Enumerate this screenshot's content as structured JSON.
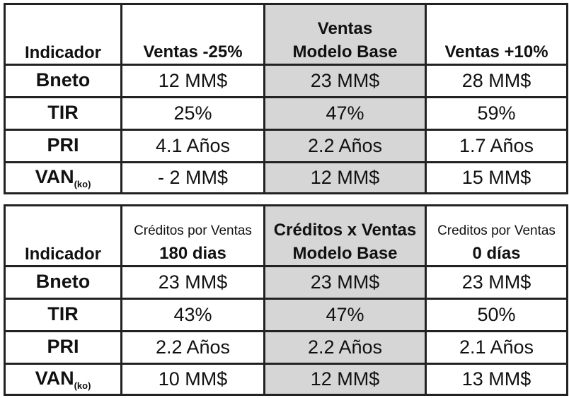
{
  "table1": {
    "header": {
      "indicator": "Indicador",
      "col1": "Ventas -25%",
      "col2_line1": "Ventas",
      "col2_line2": "Modelo Base",
      "col3": "Ventas +10%"
    },
    "rows": [
      {
        "label": "Bneto",
        "label_sub": "",
        "v1": "12 MM$",
        "v2": "23 MM$",
        "v3": "28 MM$"
      },
      {
        "label": "TIR",
        "label_sub": "",
        "v1": "25%",
        "v2": "47%",
        "v3": "59%"
      },
      {
        "label": "PRI",
        "label_sub": "",
        "v1": "4.1 Años",
        "v2": "2.2 Años",
        "v3": "1.7 Años"
      },
      {
        "label": "VAN",
        "label_sub": "(ko)",
        "v1": "- 2 MM$",
        "v2": "12 MM$",
        "v3": "15 MM$"
      }
    ]
  },
  "table2": {
    "header": {
      "indicator": "Indicador",
      "col1_line1": "Créditos por Ventas",
      "col1_line2": "180 dias",
      "col2_line1": "Créditos x Ventas",
      "col2_line2": "Modelo Base",
      "col3_line1": "Creditos por Ventas",
      "col3_line2": "0 días"
    },
    "rows": [
      {
        "label": "Bneto",
        "label_sub": "",
        "v1": "23 MM$",
        "v2": "23 MM$",
        "v3": "23 MM$"
      },
      {
        "label": "TIR",
        "label_sub": "",
        "v1": "43%",
        "v2": "47%",
        "v3": "50%"
      },
      {
        "label": "PRI",
        "label_sub": "",
        "v1": "2.2 Años",
        "v2": "2.2 Años",
        "v3": "2.1 Años"
      },
      {
        "label": "VAN",
        "label_sub": "(ko)",
        "v1": "10 MM$",
        "v2": "12 MM$",
        "v3": "13 MM$"
      }
    ]
  },
  "colors": {
    "highlight": "#d6d6d6",
    "border": "#222222"
  }
}
